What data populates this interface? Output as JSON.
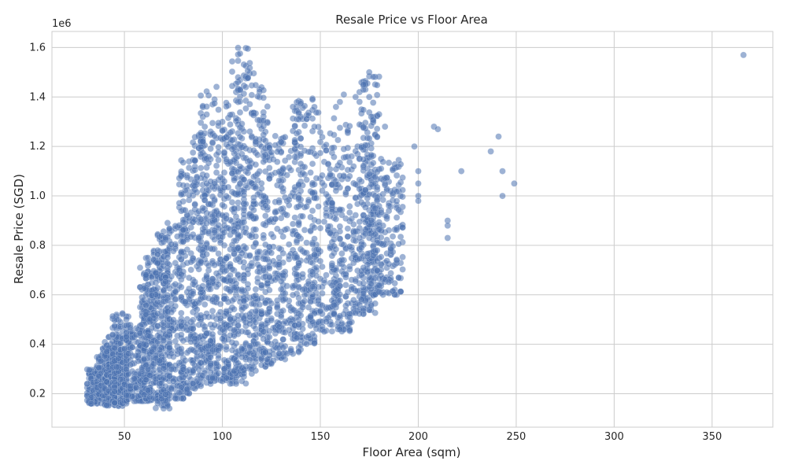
{
  "chart_data": {
    "type": "scatter",
    "title": "Resale Price vs Floor Area",
    "xlabel": "Floor Area (sqm)",
    "ylabel": "Resale Price (SGD)",
    "y_offset_label": "1e6",
    "xlim": [
      13,
      381
    ],
    "ylim": [
      0.065,
      1.665
    ],
    "xticks": [
      50,
      100,
      150,
      200,
      250,
      300,
      350
    ],
    "xtick_labels": [
      "50",
      "100",
      "150",
      "200",
      "250",
      "300",
      "350"
    ],
    "yticks": [
      0.2,
      0.4,
      0.6,
      0.8,
      1.0,
      1.2,
      1.4,
      1.6
    ],
    "ytick_labels": [
      "0.2",
      "0.4",
      "0.6",
      "0.8",
      "1.0",
      "1.2",
      "1.4",
      "1.6"
    ],
    "grid": true,
    "color": "#4c72b0",
    "bands": [
      {
        "x": [
          31,
          38
        ],
        "y": [
          0.16,
          0.3
        ]
      },
      {
        "x": [
          36,
          45
        ],
        "y": [
          0.18,
          0.39
        ]
      },
      {
        "x": [
          40,
          50
        ],
        "y": [
          0.15,
          0.44
        ]
      },
      {
        "x": [
          44,
          52
        ],
        "y": [
          0.16,
          0.54
        ]
      },
      {
        "x": [
          50,
          60
        ],
        "y": [
          0.17,
          0.48
        ]
      },
      {
        "x": [
          58,
          66
        ],
        "y": [
          0.17,
          0.72
        ]
      },
      {
        "x": [
          60,
          70
        ],
        "y": [
          0.18,
          0.78
        ]
      },
      {
        "x": [
          66,
          73
        ],
        "y": [
          0.14,
          0.86
        ]
      },
      {
        "x": [
          70,
          80
        ],
        "y": [
          0.18,
          0.9
        ]
      },
      {
        "x": [
          78,
          86
        ],
        "y": [
          0.2,
          1.15
        ]
      },
      {
        "x": [
          84,
          92
        ],
        "y": [
          0.22,
          1.25
        ]
      },
      {
        "x": [
          88,
          98
        ],
        "y": [
          0.24,
          1.45
        ]
      },
      {
        "x": [
          93,
          102
        ],
        "y": [
          0.25,
          1.3
        ]
      },
      {
        "x": [
          100,
          108
        ],
        "y": [
          0.25,
          1.4
        ]
      },
      {
        "x": [
          104,
          112
        ],
        "y": [
          0.24,
          1.55
        ]
      },
      {
        "x": [
          108,
          118
        ],
        "y": [
          0.28,
          1.6
        ]
      },
      {
        "x": [
          114,
          124
        ],
        "y": [
          0.3,
          1.45
        ]
      },
      {
        "x": [
          120,
          132
        ],
        "y": [
          0.32,
          1.25
        ]
      },
      {
        "x": [
          128,
          140
        ],
        "y": [
          0.36,
          1.25
        ]
      },
      {
        "x": [
          136,
          148
        ],
        "y": [
          0.4,
          1.4
        ]
      },
      {
        "x": [
          145,
          158
        ],
        "y": [
          0.45,
          1.35
        ]
      },
      {
        "x": [
          155,
          166
        ],
        "y": [
          0.45,
          1.3
        ]
      },
      {
        "x": [
          165,
          178
        ],
        "y": [
          0.52,
          1.2
        ]
      },
      {
        "x": [
          170,
          180
        ],
        "y": [
          0.55,
          1.5
        ]
      },
      {
        "x": [
          178,
          192
        ],
        "y": [
          0.6,
          1.15
        ]
      }
    ],
    "outliers": [
      [
        198,
        1.2
      ],
      [
        200,
        1.1
      ],
      [
        200,
        1.05
      ],
      [
        200,
        1.0
      ],
      [
        200,
        0.98
      ],
      [
        208,
        1.28
      ],
      [
        210,
        1.27
      ],
      [
        215,
        0.9
      ],
      [
        215,
        0.88
      ],
      [
        215,
        0.83
      ],
      [
        222,
        1.1
      ],
      [
        237,
        1.18
      ],
      [
        241,
        1.24
      ],
      [
        243,
        1.1
      ],
      [
        243,
        1.0
      ],
      [
        249,
        1.05
      ],
      [
        366,
        1.57
      ],
      [
        183,
        1.28
      ],
      [
        180,
        1.33
      ],
      [
        175,
        1.5
      ],
      [
        172,
        1.45
      ],
      [
        168,
        1.4
      ],
      [
        162,
        1.41
      ],
      [
        160,
        1.38
      ],
      [
        158,
        1.36
      ],
      [
        175,
        1.4
      ],
      [
        176,
        1.32
      ]
    ]
  }
}
